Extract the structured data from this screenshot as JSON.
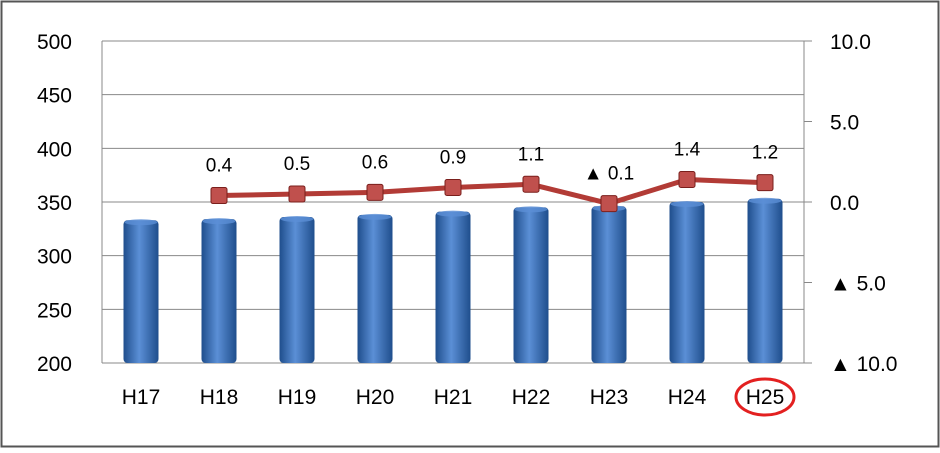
{
  "chart_data": {
    "type": "bar",
    "categories": [
      "H17",
      "H18",
      "H19",
      "H20",
      "H21",
      "H22",
      "H23",
      "H24",
      "H25"
    ],
    "highlighted_category": "H25",
    "series": [
      {
        "kind": "bar",
        "axis": "left",
        "values": [
          333,
          334,
          336,
          338,
          341,
          345,
          346,
          350,
          353
        ]
      },
      {
        "kind": "line",
        "axis": "right",
        "values": [
          null,
          0.4,
          0.5,
          0.6,
          0.9,
          1.1,
          -0.1,
          1.4,
          1.2
        ],
        "data_labels": [
          "",
          "0.4",
          "0.5",
          "0.6",
          "0.9",
          "1.1",
          "▲ 0.1",
          "1.4",
          "1.2"
        ]
      }
    ],
    "left_axis": {
      "ylim": [
        200,
        500
      ],
      "ticks": [
        200,
        250,
        300,
        350,
        400,
        450,
        500
      ],
      "tick_labels": [
        "200",
        "250",
        "300",
        "350",
        "400",
        "450",
        "500"
      ]
    },
    "right_axis": {
      "ylim": [
        -10,
        10
      ],
      "ticks": [
        -10,
        -5,
        0,
        5,
        10
      ],
      "tick_labels": [
        "▲ 10.0",
        "▲ 5.0",
        "0.0",
        "5.0",
        "10.0"
      ]
    },
    "grid": true,
    "colors": {
      "bar": "#3a6fb8",
      "bar_light": "#5b8fd6",
      "bar_dark": "#1f4e8c",
      "line": "#b23b36",
      "marker": "#c0504d",
      "highlight": "#e32020",
      "grid": "#888888",
      "frame": "#555555"
    }
  }
}
